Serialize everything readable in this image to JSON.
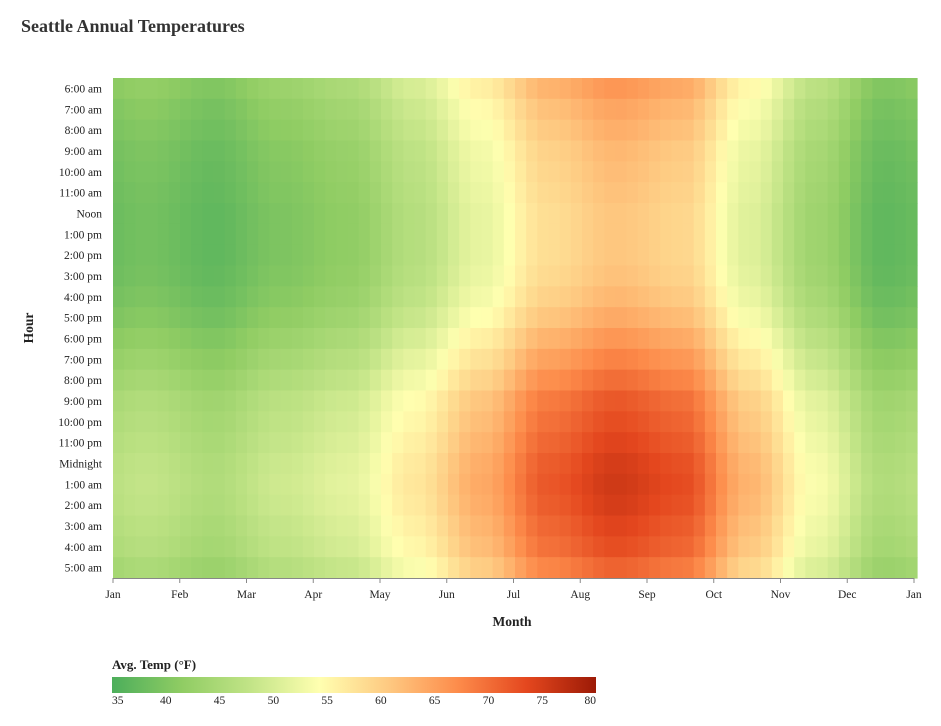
{
  "chart_data": {
    "type": "heatmap",
    "title": "Seattle Annual Temperatures",
    "xlabel": "Month",
    "ylabel": "Hour",
    "x_ticks": [
      "Jan",
      "Feb",
      "Mar",
      "Apr",
      "May",
      "Jun",
      "Jul",
      "Aug",
      "Sep",
      "Oct",
      "Nov",
      "Dec",
      "Jan"
    ],
    "y_categories": [
      "6:00 am",
      "7:00 am",
      "8:00 am",
      "9:00 am",
      "10:00 am",
      "11:00 am",
      "Noon",
      "1:00 pm",
      "2:00 pm",
      "3:00 pm",
      "4:00 pm",
      "5:00 pm",
      "6:00 pm",
      "7:00 pm",
      "8:00 pm",
      "9:00 pm",
      "10:00 pm",
      "11:00 pm",
      "Midnight",
      "1:00 am",
      "2:00 am",
      "3:00 am",
      "4:00 am",
      "5:00 am"
    ],
    "monthly_base_temp_f": [
      {
        "month": "Jan",
        "value": 42
      },
      {
        "month": "Feb",
        "value": 40
      },
      {
        "month": "Mar",
        "value": 43
      },
      {
        "month": "Apr",
        "value": 45
      },
      {
        "month": "May",
        "value": 50
      },
      {
        "month": "Jun",
        "value": 56
      },
      {
        "month": "Jul",
        "value": 63
      },
      {
        "month": "Aug",
        "value": 66
      },
      {
        "month": "Sep",
        "value": 64
      },
      {
        "month": "Oct",
        "value": 55
      },
      {
        "month": "Nov",
        "value": 47
      },
      {
        "month": "Dec",
        "value": 40
      }
    ],
    "hourly_offset_f": [
      {
        "hour": "6:00 am",
        "value": 0
      },
      {
        "hour": "7:00 am",
        "value": -1.5
      },
      {
        "hour": "8:00 am",
        "value": -2.5
      },
      {
        "hour": "9:00 am",
        "value": -3.5
      },
      {
        "hour": "10:00 am",
        "value": -4
      },
      {
        "hour": "11:00 am",
        "value": -4.5
      },
      {
        "hour": "Noon",
        "value": -5
      },
      {
        "hour": "1:00 pm",
        "value": -5
      },
      {
        "hour": "2:00 pm",
        "value": -5
      },
      {
        "hour": "3:00 pm",
        "value": -4.5
      },
      {
        "hour": "4:00 pm",
        "value": -3.5
      },
      {
        "hour": "5:00 pm",
        "value": -2
      },
      {
        "hour": "6:00 pm",
        "value": 0
      },
      {
        "hour": "7:00 pm",
        "value": 2
      },
      {
        "hour": "8:00 pm",
        "value": 4
      },
      {
        "hour": "9:00 pm",
        "value": 6
      },
      {
        "hour": "10:00 pm",
        "value": 7
      },
      {
        "hour": "11:00 pm",
        "value": 8
      },
      {
        "hour": "Midnight",
        "value": 9
      },
      {
        "hour": "1:00 am",
        "value": 9.5
      },
      {
        "hour": "2:00 am",
        "value": 9
      },
      {
        "hour": "3:00 am",
        "value": 8
      },
      {
        "hour": "4:00 am",
        "value": 7
      },
      {
        "hour": "5:00 am",
        "value": 5
      }
    ],
    "legend": {
      "title": "Avg. Temp (°F)",
      "placement": "bottom-left",
      "domain": [
        35,
        80
      ],
      "ticks": [
        "35",
        "40",
        "45",
        "50",
        "55",
        "60",
        "65",
        "70",
        "75",
        "80"
      ],
      "colors": [
        "#4cae5b",
        "#8fcc63",
        "#c2e487",
        "#ffffb0",
        "#fec981",
        "#fd8c4b",
        "#e4471e",
        "#9c1a06"
      ]
    }
  }
}
